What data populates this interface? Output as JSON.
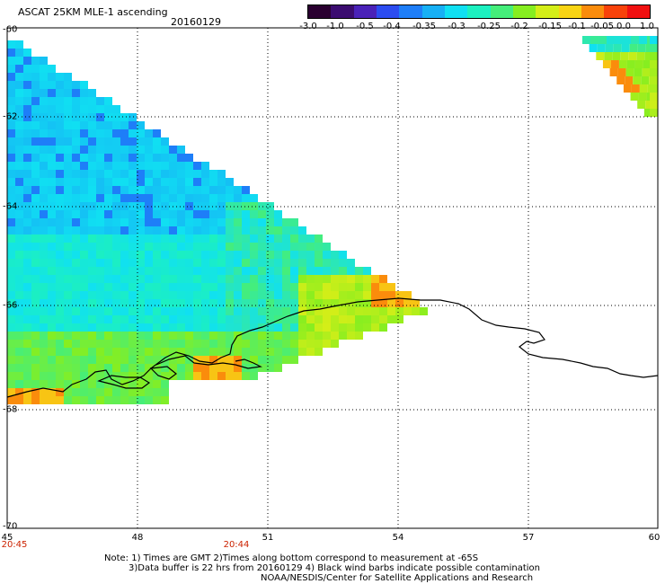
{
  "header": {
    "title": "ASCAT 25KM MLE-1 ascending",
    "date": "20160129"
  },
  "colorbar": {
    "labels": [
      "-3.0",
      "-1.0",
      "-0.5",
      "-0.4",
      "-0.35",
      "-0.3",
      "-0.25",
      "-0.2",
      "-0.15",
      "-0.1",
      "-0.05",
      "0.0",
      "1.0"
    ],
    "colors": [
      "#2a0030",
      "#3b0c70",
      "#4a22b8",
      "#2c4cf0",
      "#1e7ef8",
      "#17b0f5",
      "#10e0f2",
      "#1cf0c0",
      "#45ee7a",
      "#86ee20",
      "#d4ee18",
      "#f8d414",
      "#fa8c0c",
      "#f8420a",
      "#f01010"
    ]
  },
  "axes": {
    "lat_labels": [
      "-60",
      "-62",
      "-64",
      "-66",
      "-68",
      "-70"
    ],
    "lon_labels": [
      "45",
      "48",
      "51",
      "54",
      "57",
      "60"
    ],
    "time_labels": [
      "20:45",
      "20:44"
    ]
  },
  "notes": {
    "line1": "Note: 1) Times are GMT 2)Times along bottom correspond to measurement at -65S",
    "line2": "3)Data buffer is 22 hrs from 20160129 4) Black wind barbs indicate possible contamination",
    "line3": "NOAA/NESDIS/Center for Satellite Applications and Research"
  }
}
